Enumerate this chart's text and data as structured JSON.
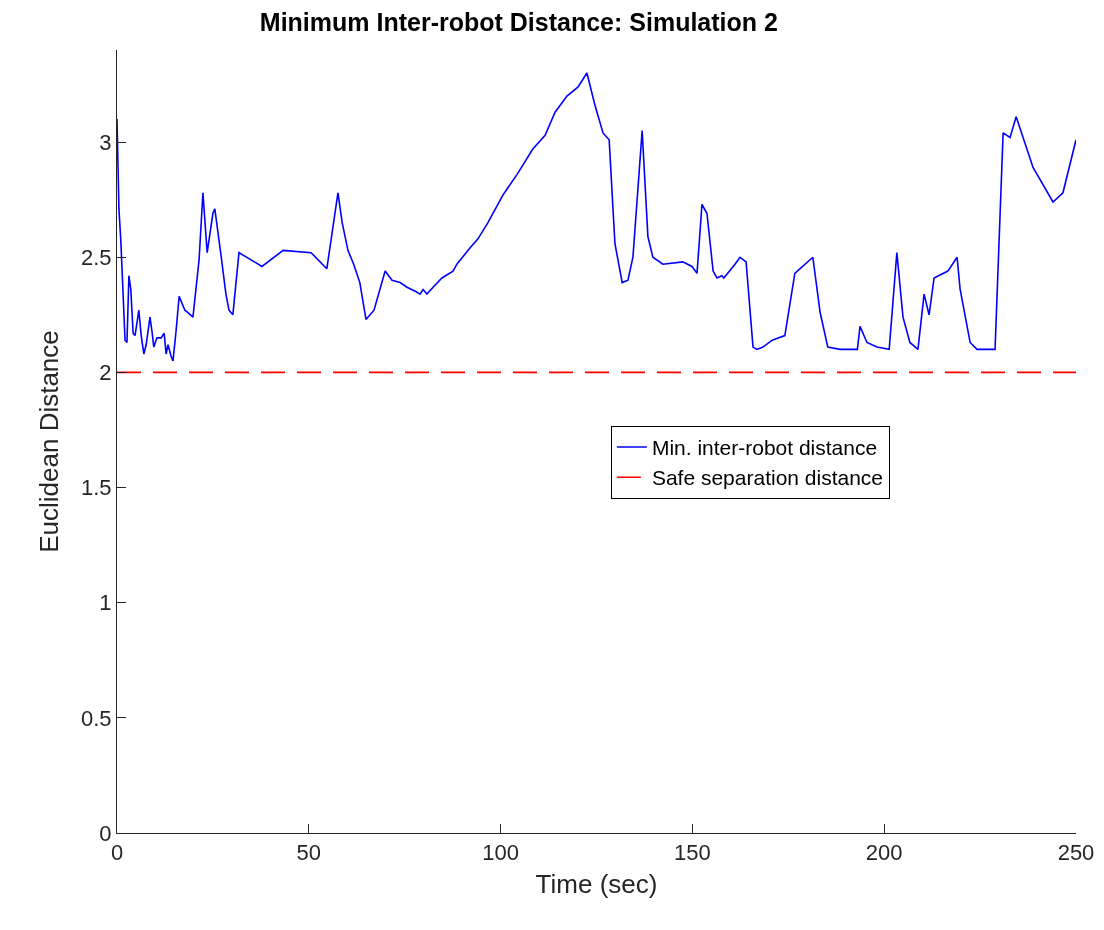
{
  "chart_data": {
    "type": "line",
    "title": "Minimum Inter-robot Distance: Simulation 2",
    "xlabel": "Time (sec)",
    "ylabel": "Euclidean Distance",
    "xlim": [
      0,
      250
    ],
    "xticks": [
      0,
      50,
      100,
      150,
      200,
      250
    ],
    "ylim": [
      0,
      3.4
    ],
    "yticks": [
      0,
      0.5,
      1,
      1.5,
      2,
      2.5,
      3
    ],
    "grid": false,
    "legend": "right",
    "line_style": "solid",
    "marker": "none",
    "series": [
      {
        "name": "Min. inter-robot distance",
        "color": "#0000ff",
        "x": [
          0,
          0.5,
          1,
          2.1,
          2.6,
          3.1,
          3.6,
          4.2,
          4.7,
          5.7,
          6.3,
          7,
          7.6,
          8.6,
          9.1,
          9.6,
          10.4,
          11.5,
          12.3,
          12.8,
          13.3,
          14.1,
          14.6,
          15.4,
          16.2,
          17.7,
          18.5,
          19.8,
          21.4,
          22.4,
          23.5,
          25,
          25.5,
          27.1,
          28.4,
          29.2,
          30.2,
          31.8,
          37.8,
          43.3,
          50.6,
          54.7,
          57.6,
          58.7,
          60.2,
          61.7,
          63.3,
          64.9,
          67,
          69.9,
          71.7,
          73.8,
          75.6,
          78,
          79,
          79.8,
          80.8,
          82.4,
          84.7,
          87.6,
          88.6,
          92,
          94.1,
          96.7,
          100.6,
          104.3,
          108.4,
          111.6,
          114.2,
          117.3,
          120.2,
          122.5,
          124.6,
          126.7,
          128.3,
          129.8,
          131.7,
          133.2,
          134.5,
          136.9,
          138.4,
          139.7,
          142.3,
          147.5,
          149.9,
          151.2,
          152.5,
          153.8,
          155.4,
          156.4,
          157.7,
          158.2,
          161.1,
          162.4,
          164,
          165.8,
          166.8,
          168.4,
          170.8,
          174.1,
          176.7,
          181.4,
          183.3,
          185.3,
          188.5,
          193,
          193.7,
          195.5,
          198.1,
          201.3,
          203.3,
          204.9,
          206.7,
          208.8,
          210.4,
          211.7,
          213,
          216.6,
          219,
          219.8,
          222.4,
          224.2,
          228.9,
          231,
          232.8,
          234.4,
          238.8,
          244,
          246.6,
          250
        ],
        "values": [
          3.1,
          2.71,
          2.57,
          2.14,
          2.13,
          2.42,
          2.36,
          2.17,
          2.16,
          2.27,
          2.16,
          2.08,
          2.12,
          2.24,
          2.18,
          2.11,
          2.15,
          2.15,
          2.17,
          2.08,
          2.12,
          2.07,
          2.05,
          2.18,
          2.33,
          2.27,
          2.26,
          2.24,
          2.49,
          2.78,
          2.52,
          2.69,
          2.71,
          2.51,
          2.34,
          2.27,
          2.25,
          2.52,
          2.46,
          2.53,
          2.52,
          2.45,
          2.78,
          2.65,
          2.53,
          2.47,
          2.39,
          2.23,
          2.27,
          2.44,
          2.4,
          2.39,
          2.37,
          2.35,
          2.34,
          2.36,
          2.34,
          2.37,
          2.41,
          2.44,
          2.47,
          2.54,
          2.58,
          2.65,
          2.77,
          2.86,
          2.97,
          3.03,
          3.13,
          3.2,
          3.24,
          3.3,
          3.16,
          3.04,
          3.01,
          2.56,
          2.39,
          2.4,
          2.5,
          3.05,
          2.59,
          2.5,
          2.47,
          2.48,
          2.46,
          2.43,
          2.73,
          2.69,
          2.44,
          2.41,
          2.42,
          2.41,
          2.47,
          2.5,
          2.48,
          2.11,
          2.1,
          2.11,
          2.14,
          2.16,
          2.43,
          2.5,
          2.26,
          2.11,
          2.1,
          2.1,
          2.2,
          2.13,
          2.11,
          2.1,
          2.52,
          2.24,
          2.13,
          2.1,
          2.34,
          2.25,
          2.41,
          2.44,
          2.5,
          2.36,
          2.13,
          2.1,
          2.1,
          3.04,
          3.02,
          3.11,
          2.89,
          2.74,
          2.78,
          3.01
        ]
      }
    ],
    "ref_lines": [
      {
        "axis": "y",
        "value": 2,
        "label": "Safe separation distance",
        "color": "#ff0000",
        "line_style": "dashed"
      }
    ]
  }
}
